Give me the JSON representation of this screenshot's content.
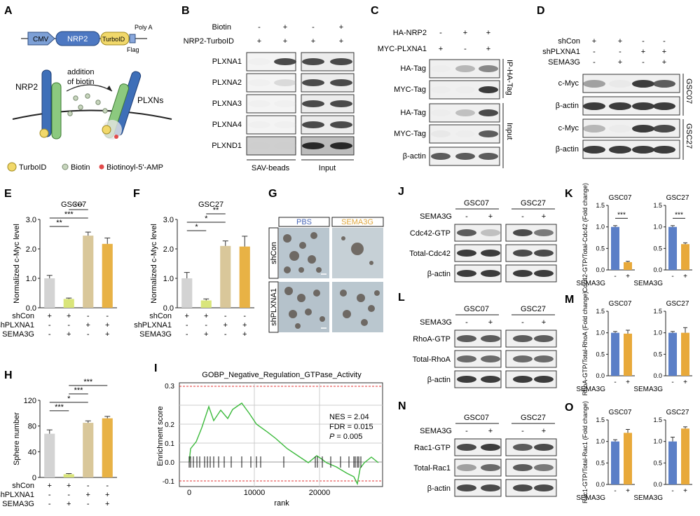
{
  "panels": {
    "A": {
      "letter": "A",
      "construct": [
        "CMV",
        "NRP2",
        "TurboID",
        "Poly A",
        "Flag"
      ],
      "protein_left": "NRP2",
      "protein_right": "PLXNs",
      "arrow_label": [
        "addition",
        "of biotin"
      ],
      "legend": [
        "TurboID",
        "Biotin",
        "Biotinoyl-5'-AMP"
      ]
    },
    "B": {
      "letter": "B",
      "row1_label": "Biotin",
      "row1_signs": [
        "-",
        "+",
        "-",
        "+"
      ],
      "row2_label": "NRP2-TurboID",
      "row2_signs": [
        "+",
        "+",
        "+",
        "+"
      ],
      "bands": [
        "PLXNA1",
        "PLXNA2",
        "PLXNA3",
        "PLXNA4",
        "PLXND1"
      ],
      "footer": [
        "SAV-beads",
        "Input"
      ]
    },
    "C": {
      "letter": "C",
      "row1_label": "HA-NRP2",
      "row1_signs": [
        "-",
        "+",
        "+"
      ],
      "row2_label": "MYC-PLXNA1",
      "row2_signs": [
        "+",
        "-",
        "+"
      ],
      "bands": [
        "HA-Tag",
        "MYC-Tag",
        "HA-Tag",
        "MYC-Tag",
        "β-actin"
      ],
      "side": [
        "IP-HA-Tag",
        "Input"
      ]
    },
    "D": {
      "letter": "D",
      "row_labels": [
        "shCon",
        "shPLXNA1",
        "SEMA3G"
      ],
      "signs": [
        [
          "+",
          "+",
          "-",
          "-"
        ],
        [
          "-",
          "-",
          "+",
          "+"
        ],
        [
          "-",
          "+",
          "-",
          "+"
        ]
      ],
      "bands": [
        "c-Myc",
        "β-actin",
        "c-Myc",
        "β-actin"
      ],
      "side": [
        "GSC07",
        "GSC27"
      ]
    },
    "G": {
      "letter": "G",
      "cols": [
        "PBS",
        "SEMA3G"
      ],
      "rows": [
        "shCon",
        "shPLXNA1"
      ]
    },
    "I": {
      "letter": "I",
      "title": "GOBP_Negative_Regulation_GTPase_Activity",
      "ylabel": "Enrichment score",
      "xlabel": "rank",
      "yticks": [
        "0.3",
        "0.2",
        "0.1",
        "0.0",
        "-0.1"
      ],
      "xticks": [
        "0",
        "10000",
        "20000"
      ],
      "nes": "NES = 2.04",
      "fdr": "FDR = 0.015",
      "p_label": "P",
      "p_value": " = 0.005"
    },
    "J": {
      "letter": "J",
      "groups": [
        "GSC07",
        "GSC27"
      ],
      "treat_label": "SEMA3G",
      "signs": [
        "-",
        "+",
        "-",
        "+"
      ],
      "bands": [
        "Cdc42-GTP",
        "Total-Cdc42",
        "β-actin"
      ]
    },
    "L": {
      "letter": "L",
      "groups": [
        "GSC07",
        "GSC27"
      ],
      "treat_label": "SEMA3G",
      "signs": [
        "-",
        "+",
        "-",
        "+"
      ],
      "bands": [
        "RhoA-GTP",
        "Total-RhoA",
        "β-actin"
      ]
    },
    "N": {
      "letter": "N",
      "groups": [
        "GSC07",
        "GSC27"
      ],
      "treat_label": "SEMA3G",
      "signs": [
        "-",
        "+",
        "-",
        "+"
      ],
      "bands": [
        "Rac1-GTP",
        "Total-Rac1",
        "β-actin"
      ]
    }
  },
  "treat_row_labels": [
    "shCon",
    "shPLXNA1",
    "SEMA3G"
  ],
  "treat_signs": [
    [
      "+",
      "+",
      "-",
      "-"
    ],
    [
      "-",
      "-",
      "+",
      "+"
    ],
    [
      "-",
      "+",
      "-",
      "+"
    ]
  ],
  "chart_data": [
    {
      "id": "E",
      "type": "bar",
      "title": "GSC07",
      "ylabel": "Normalized c-Myc level",
      "ylim": [
        0,
        3.0
      ],
      "yticks": [
        "0.0",
        "1.0",
        "2.0",
        "3.0"
      ],
      "ytick_values": [
        0,
        1,
        2,
        3
      ],
      "values": [
        1.0,
        0.3,
        2.45,
        2.17
      ],
      "errors": [
        0.1,
        0.03,
        0.12,
        0.2
      ],
      "colors": [
        "#d3d3d3",
        "#d9e57a",
        "#d9c79a",
        "#e8b245"
      ],
      "significance": [
        {
          "pair": [
            0,
            1
          ],
          "label": "**"
        },
        {
          "pair": [
            0,
            2
          ],
          "label": "***"
        },
        {
          "pair": [
            1,
            2
          ],
          "label": "***"
        }
      ]
    },
    {
      "id": "F",
      "type": "bar",
      "title": "GSC27",
      "ylabel": "Normalized c-Myc level",
      "ylim": [
        0,
        3.0
      ],
      "yticks": [
        "0.0",
        "1.0",
        "2.0",
        "3.0"
      ],
      "ytick_values": [
        0,
        1,
        2,
        3
      ],
      "values": [
        1.0,
        0.25,
        2.1,
        2.08
      ],
      "errors": [
        0.2,
        0.05,
        0.17,
        0.35
      ],
      "colors": [
        "#d3d3d3",
        "#d9e57a",
        "#d9c79a",
        "#e8b245"
      ],
      "significance": [
        {
          "pair": [
            0,
            1
          ],
          "label": "*"
        },
        {
          "pair": [
            0,
            2
          ],
          "label": "*"
        },
        {
          "pair": [
            1,
            2
          ],
          "label": "**"
        }
      ]
    },
    {
      "id": "H",
      "type": "bar",
      "title": "",
      "ylabel": "Sphere number",
      "ylim": [
        0,
        120
      ],
      "yticks": [
        "0",
        "40",
        "80",
        "120"
      ],
      "ytick_values": [
        0,
        40,
        80,
        120
      ],
      "values": [
        68,
        5,
        85,
        92
      ],
      "errors": [
        6,
        1,
        3,
        3
      ],
      "colors": [
        "#d3d3d3",
        "#d9e57a",
        "#d9c79a",
        "#e8b245"
      ],
      "significance": [
        {
          "pair": [
            0,
            1
          ],
          "label": "***"
        },
        {
          "pair": [
            0,
            2
          ],
          "label": "*"
        },
        {
          "pair": [
            1,
            2
          ],
          "label": "***"
        },
        {
          "pair": [
            1,
            3
          ],
          "label": "***"
        }
      ]
    },
    {
      "id": "K",
      "type": "bar",
      "ylabel": "Cdc42-GTP/Total-Cdc42 (Fold change)",
      "ylim": [
        0,
        1.5
      ],
      "yticks": [
        "0.0",
        "0.5",
        "1.0",
        "1.5"
      ],
      "ytick_values": [
        0,
        0.5,
        1.0,
        1.5
      ],
      "xlabel": "SEMA3G",
      "signs": [
        "-",
        "+"
      ],
      "subplots": [
        {
          "title": "GSC07",
          "values": [
            1.0,
            0.18
          ],
          "errors": [
            0.03,
            0.02
          ],
          "sig": "***"
        },
        {
          "title": "GSC27",
          "values": [
            1.0,
            0.6
          ],
          "errors": [
            0.03,
            0.03
          ],
          "sig": "***"
        }
      ]
    },
    {
      "id": "M",
      "type": "bar",
      "ylabel": "RhoA-GTP/Total-RhoA (Fold change)",
      "ylim": [
        0,
        1.5
      ],
      "yticks": [
        "0.0",
        "0.5",
        "1.0",
        "1.5"
      ],
      "ytick_values": [
        0,
        0.5,
        1.0,
        1.5
      ],
      "xlabel": "SEMA3G",
      "signs": [
        "-",
        "+"
      ],
      "subplots": [
        {
          "title": "GSC07",
          "values": [
            1.0,
            0.98
          ],
          "errors": [
            0.03,
            0.08
          ],
          "sig": ""
        },
        {
          "title": "GSC27",
          "values": [
            1.0,
            1.0
          ],
          "errors": [
            0.03,
            0.12
          ],
          "sig": ""
        }
      ]
    },
    {
      "id": "O",
      "type": "bar",
      "ylabel": "Rac1-GTP/Total-Rac1 (Fold change)",
      "ylim": [
        0,
        1.5
      ],
      "yticks": [
        "0.0",
        "0.5",
        "1.0",
        "1.5"
      ],
      "ytick_values": [
        0,
        0.5,
        1.0,
        1.5
      ],
      "xlabel": "SEMA3G",
      "signs": [
        "-",
        "+"
      ],
      "subplots": [
        {
          "title": "GSC07",
          "values": [
            1.0,
            1.2
          ],
          "errors": [
            0.04,
            0.08
          ],
          "sig": ""
        },
        {
          "title": "GSC27",
          "values": [
            1.0,
            1.3
          ],
          "errors": [
            0.1,
            0.04
          ],
          "sig": ""
        }
      ]
    }
  ],
  "colors": {
    "blue": "#5b7fc7",
    "orange": "#e8a93a"
  }
}
